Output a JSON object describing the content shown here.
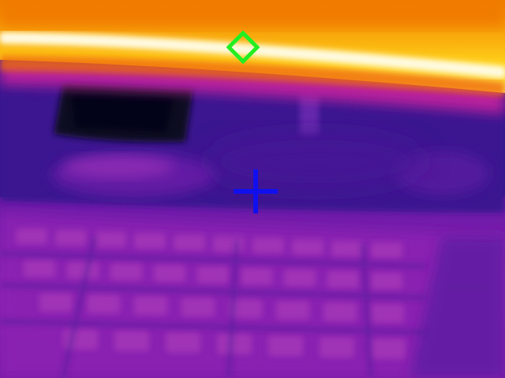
{
  "scene": {
    "type": "thermal-camera-view",
    "palette": "iron",
    "colors": {
      "hot": "#ffffff",
      "warm": "#ffd21a",
      "mid": "#f07a00",
      "cool": "#c0209e",
      "cold": "#33107a",
      "coldest": "#0a0a18"
    }
  },
  "markers": {
    "hot_spot": {
      "icon": "green-diamond-icon",
      "color": "#22ee22"
    },
    "center": {
      "icon": "blue-crosshair-icon",
      "color": "#1010ee"
    }
  }
}
